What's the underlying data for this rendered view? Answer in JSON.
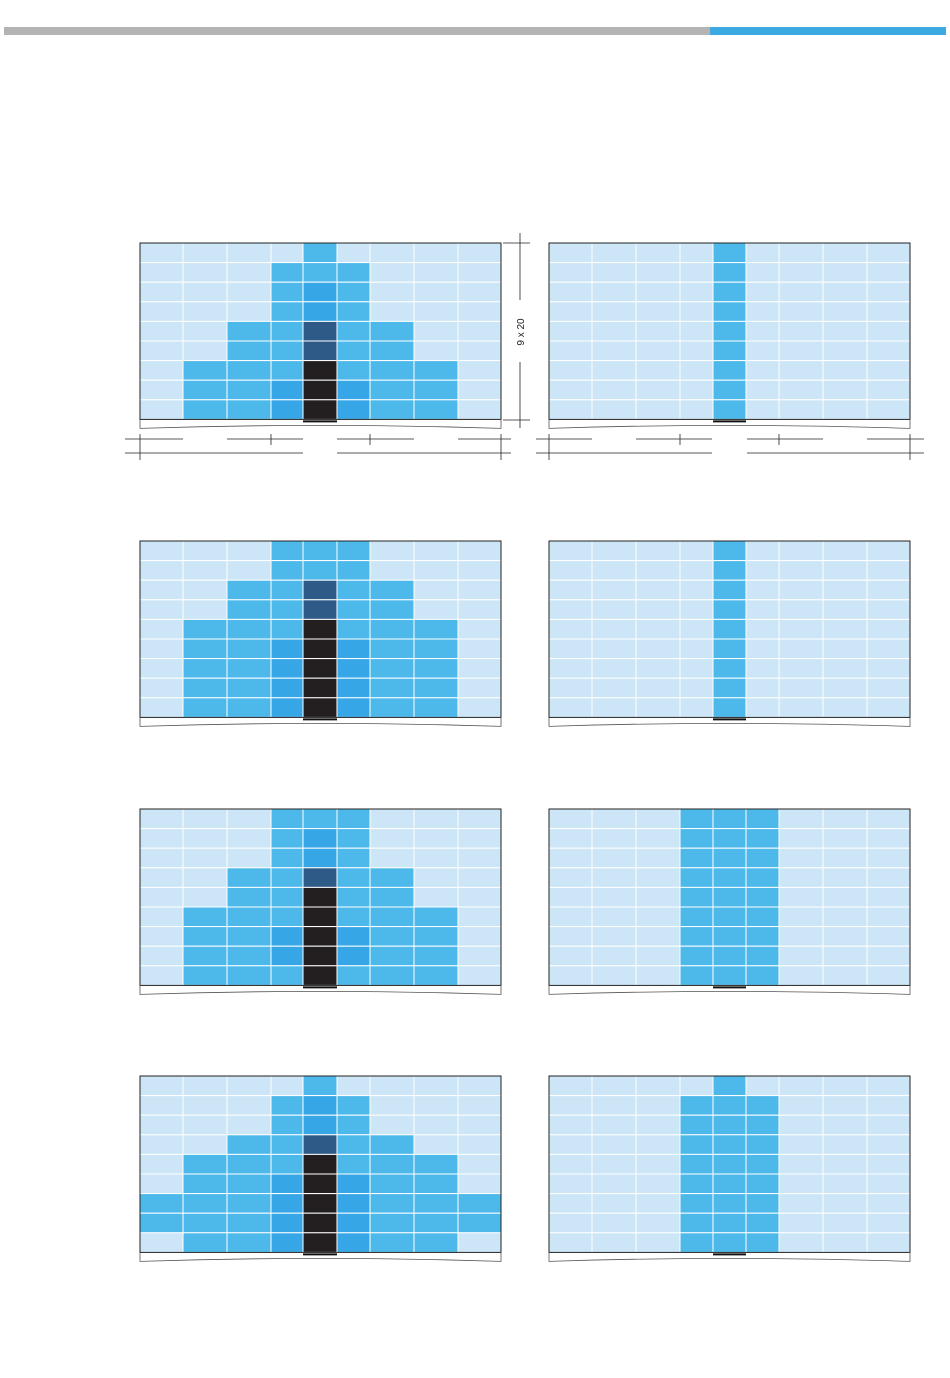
{
  "header": {
    "bar_colors": {
      "gray": "#b3b3b3",
      "blue": "#3da9e3"
    }
  },
  "dimension": {
    "label": "9 x 20"
  },
  "colors": {
    "0": "#cce6f7",
    "1": "#4db8ea",
    "2": "#36a6e6",
    "3": "#2e5a88",
    "4": "#231f20"
  },
  "grid": {
    "columns": 9,
    "rows": 9
  },
  "panels": [
    {
      "name": "panel-row1-left",
      "levels": [
        0,
        0,
        0,
        0,
        1,
        0,
        0,
        0,
        0
      ]
    },
    {
      "name": "panel-row1-right",
      "levels": [
        0,
        0,
        0,
        0,
        1,
        0,
        0,
        0,
        0
      ],
      "uniform": 9
    },
    {
      "name": "panel-row2-left",
      "levels": [
        0,
        0,
        0,
        1,
        1,
        1,
        0,
        0,
        0
      ]
    },
    {
      "name": "panel-row2-right",
      "levels": [
        0,
        0,
        0,
        0,
        1,
        0,
        0,
        0,
        0
      ],
      "uniform": 9
    }
  ]
}
